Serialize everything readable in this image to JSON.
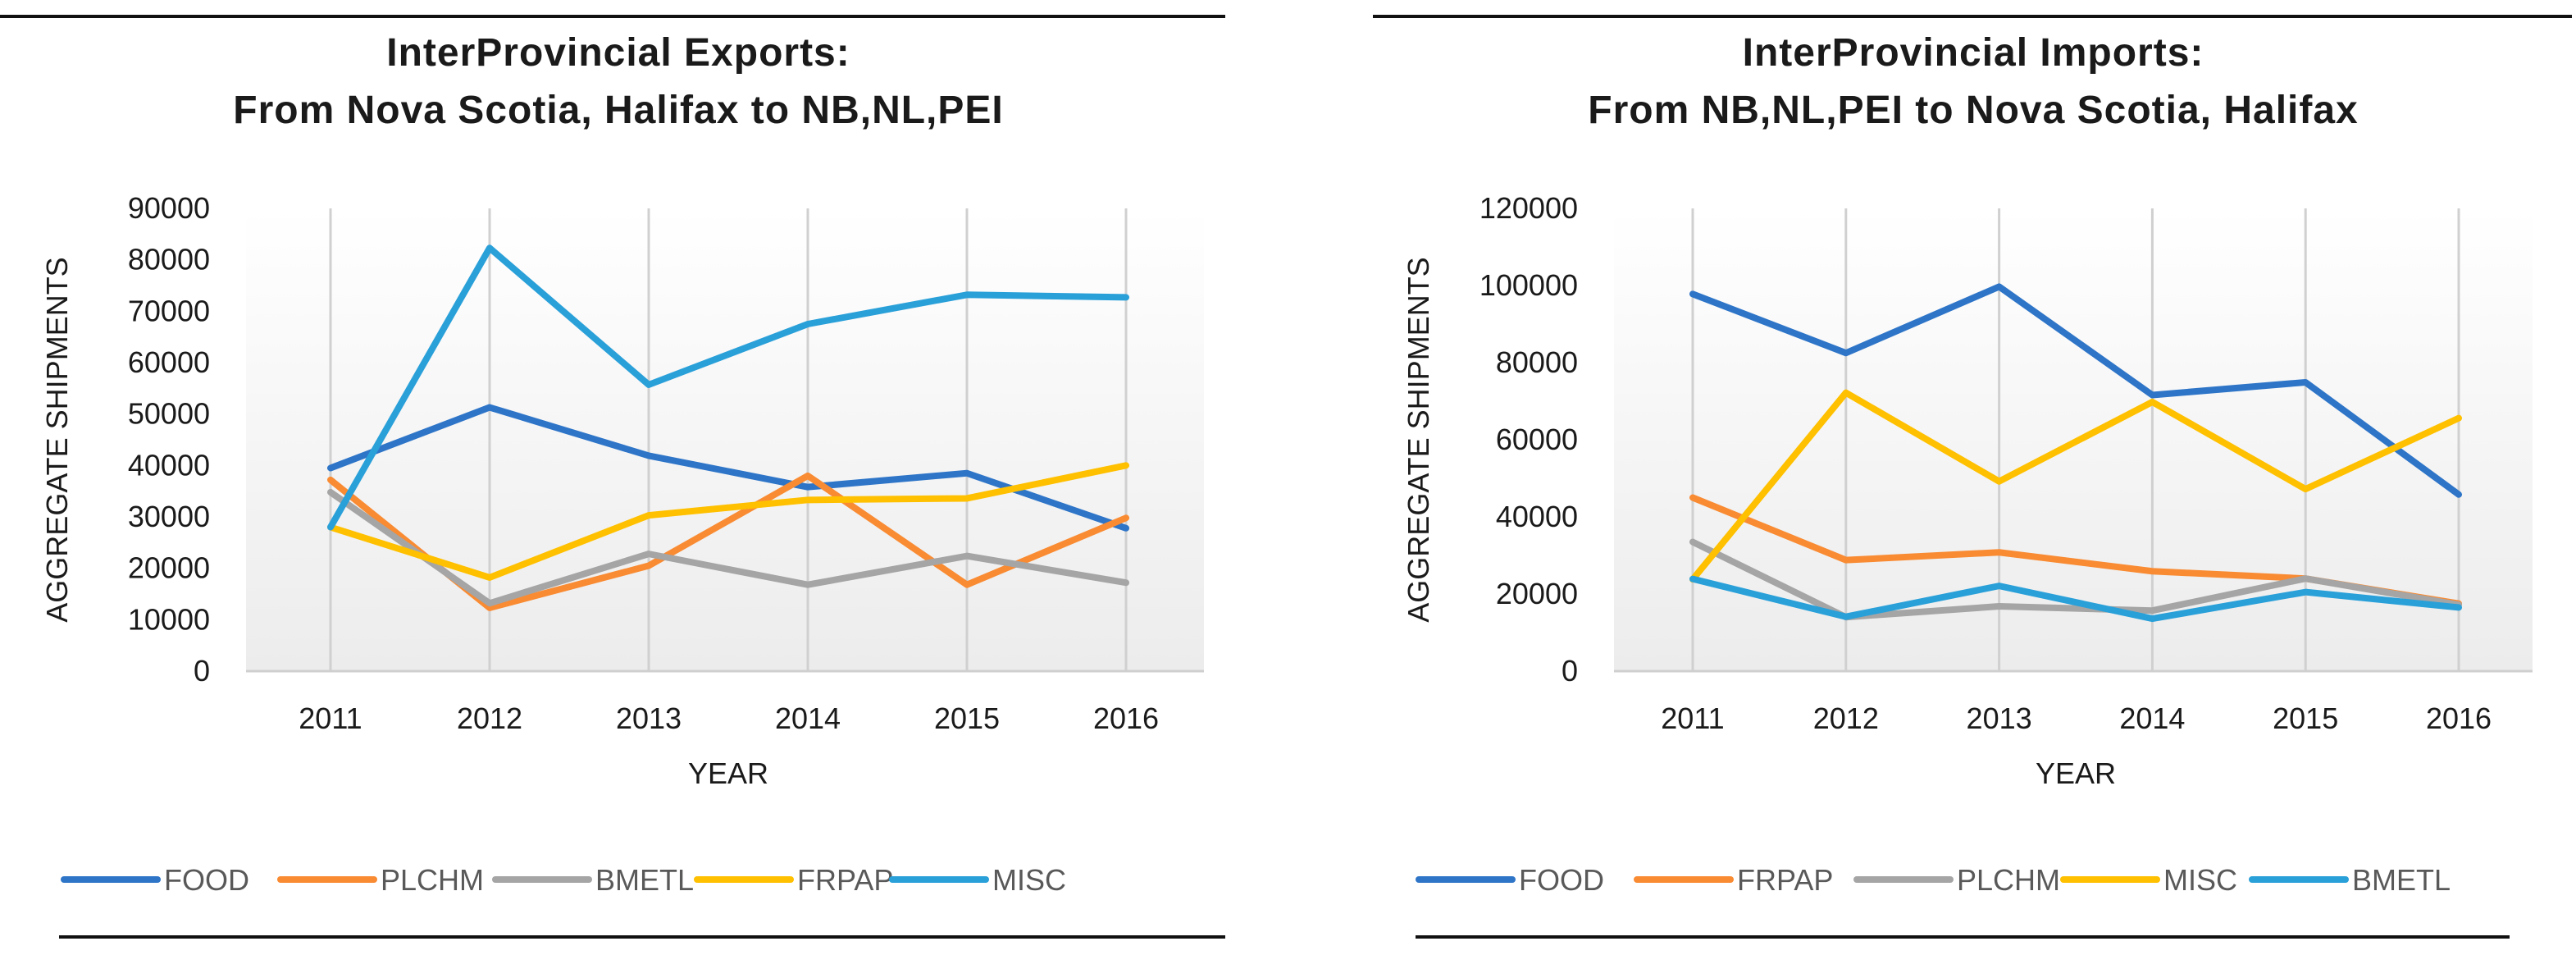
{
  "chart_data": [
    {
      "type": "line",
      "title": [
        "InterProvincial  Exports:",
        "From  Nova  Scotia,  Halifax  to  NB,NL,PEI"
      ],
      "xlabel": "YEAR",
      "ylabel": "AGGREGATE SHIPMENTS",
      "ylim": [
        0,
        90000
      ],
      "yticks": [
        0,
        10000,
        20000,
        30000,
        40000,
        50000,
        60000,
        70000,
        80000,
        90000
      ],
      "categories": [
        "2011",
        "2012",
        "2013",
        "2014",
        "2015",
        "2016"
      ],
      "grid": "vertical",
      "legend": "bottom",
      "series": [
        {
          "name": "FOOD",
          "color": "#2E75C8",
          "values": [
            39500,
            51300,
            41900,
            35800,
            38500,
            27800
          ]
        },
        {
          "name": "PLCHM",
          "color": "#F98B33",
          "values": [
            37200,
            12300,
            20500,
            38000,
            16800,
            29800
          ]
        },
        {
          "name": "BMETL",
          "color": "#A5A5A5",
          "values": [
            34800,
            13200,
            22800,
            16800,
            22400,
            17200
          ]
        },
        {
          "name": "FRPAP",
          "color": "#FFC000",
          "values": [
            28000,
            18200,
            30300,
            33300,
            33600,
            40000
          ]
        },
        {
          "name": "MISC",
          "color": "#2AA0D9",
          "values": [
            28000,
            82300,
            55700,
            67500,
            73200,
            72700
          ]
        }
      ]
    },
    {
      "type": "line",
      "title": [
        "InterProvincial  Imports:",
        "From  NB,NL,PEI  to  Nova  Scotia,  Halifax"
      ],
      "xlabel": "YEAR",
      "ylabel": "AGGREGATE SHIPMENTS",
      "ylim": [
        0,
        120000
      ],
      "yticks": [
        0,
        20000,
        40000,
        60000,
        80000,
        100000,
        120000
      ],
      "categories": [
        "2011",
        "2012",
        "2013",
        "2014",
        "2015",
        "2016"
      ],
      "grid": "vertical",
      "legend": "bottom",
      "series": [
        {
          "name": "FOOD",
          "color": "#2E75C8",
          "values": [
            97800,
            82500,
            99700,
            71600,
            74900,
            45800
          ]
        },
        {
          "name": "FRPAP",
          "color": "#F98B33",
          "values": [
            45000,
            28800,
            30800,
            25900,
            24000,
            17500
          ]
        },
        {
          "name": "PLCHM",
          "color": "#A5A5A5",
          "values": [
            33500,
            14000,
            16800,
            15700,
            24000,
            17200
          ]
        },
        {
          "name": "MISC",
          "color": "#FFC000",
          "values": [
            23800,
            72200,
            49200,
            69800,
            47200,
            65600
          ]
        },
        {
          "name": "BMETL",
          "color": "#2AA0D9",
          "values": [
            23900,
            14100,
            22100,
            13600,
            20500,
            16500
          ]
        }
      ]
    }
  ]
}
